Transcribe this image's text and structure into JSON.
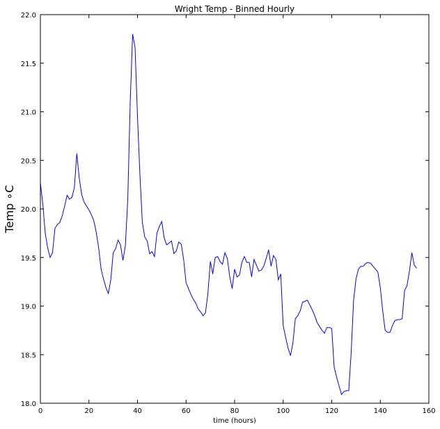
{
  "chart_data": {
    "type": "line",
    "title": "Wright Temp - Binned Hourly",
    "xlabel": "time (hours)",
    "ylabel": "Temp ∘C",
    "xlim": [
      0,
      160
    ],
    "ylim": [
      18.0,
      22.0
    ],
    "xticks": [
      0,
      20,
      40,
      60,
      80,
      100,
      120,
      140,
      160
    ],
    "xtick_labels": [
      "0",
      "20",
      "40",
      "60",
      "80",
      "100",
      "120",
      "140",
      "160"
    ],
    "yticks": [
      18.0,
      18.5,
      19.0,
      19.5,
      20.0,
      20.5,
      21.0,
      21.5,
      22.0
    ],
    "ytick_labels": [
      "18.0",
      "18.5",
      "19.0",
      "19.5",
      "20.0",
      "20.5",
      "21.0",
      "21.5",
      "22.0"
    ],
    "grid": false,
    "line_color": "#0000ff",
    "series": [
      {
        "x": [
          0,
          1,
          2,
          3,
          4,
          5,
          6,
          7,
          8,
          9,
          10,
          11,
          12,
          13,
          14,
          15,
          16,
          17,
          18,
          19,
          20,
          21,
          22,
          23,
          24,
          25,
          26,
          27,
          28,
          29,
          30,
          31,
          32,
          33,
          34,
          35,
          36,
          37,
          38,
          39,
          40,
          41,
          42,
          43,
          44,
          45,
          46,
          47,
          48,
          49,
          50,
          51,
          52,
          53,
          54,
          55,
          56,
          57,
          58,
          59,
          60,
          61,
          62,
          63,
          64,
          65,
          66,
          67,
          68,
          69,
          70,
          71,
          72,
          73,
          74,
          75,
          76,
          77,
          78,
          79,
          80,
          81,
          82,
          83,
          84,
          85,
          86,
          87,
          88,
          89,
          90,
          91,
          92,
          93,
          94,
          95,
          96,
          97,
          98,
          99,
          100,
          101,
          102,
          103,
          104,
          105,
          106,
          107,
          108,
          109,
          110,
          111,
          112,
          113,
          114,
          115,
          116,
          117,
          118,
          119,
          120,
          121,
          122,
          123,
          124,
          125,
          126,
          127,
          128,
          129,
          130,
          131,
          132,
          133,
          134,
          135,
          136,
          137,
          138,
          139,
          140,
          141,
          142,
          143,
          144,
          145,
          146,
          147,
          148,
          149,
          150,
          151,
          152,
          153,
          154,
          155
        ],
        "y": [
          20.27,
          20.05,
          19.75,
          19.6,
          19.5,
          19.55,
          19.8,
          19.84,
          19.86,
          19.93,
          20.03,
          20.14,
          20.1,
          20.12,
          20.22,
          20.57,
          20.32,
          20.15,
          20.07,
          20.03,
          19.99,
          19.94,
          19.88,
          19.76,
          19.6,
          19.38,
          19.28,
          19.19,
          19.13,
          19.27,
          19.55,
          19.59,
          19.68,
          19.63,
          19.47,
          19.62,
          20.1,
          21.1,
          21.8,
          21.66,
          20.95,
          20.35,
          19.86,
          19.71,
          19.67,
          19.54,
          19.56,
          19.51,
          19.75,
          19.82,
          19.87,
          19.7,
          19.63,
          19.65,
          19.67,
          19.54,
          19.57,
          19.66,
          19.64,
          19.48,
          19.24,
          19.18,
          19.12,
          19.07,
          19.03,
          18.97,
          18.94,
          18.9,
          18.93,
          19.13,
          19.46,
          19.33,
          19.5,
          19.51,
          19.46,
          19.43,
          19.55,
          19.49,
          19.3,
          19.18,
          19.38,
          19.3,
          19.32,
          19.45,
          19.51,
          19.45,
          19.45,
          19.3,
          19.48,
          19.42,
          19.36,
          19.37,
          19.41,
          19.49,
          19.58,
          19.41,
          19.52,
          19.48,
          19.27,
          19.33,
          18.8,
          18.68,
          18.57,
          18.49,
          18.62,
          18.87,
          18.9,
          18.95,
          19.04,
          19.05,
          19.06,
          19.01,
          18.96,
          18.9,
          18.83,
          18.79,
          18.75,
          18.72,
          18.78,
          18.78,
          18.77,
          18.37,
          18.27,
          18.18,
          18.09,
          18.12,
          18.13,
          18.13,
          18.52,
          19.06,
          19.28,
          19.38,
          19.41,
          19.41,
          19.44,
          19.45,
          19.44,
          19.41,
          19.38,
          19.35,
          19.19,
          18.95,
          18.75,
          18.73,
          18.73,
          18.8,
          18.85,
          18.86,
          18.86,
          18.87,
          19.16,
          19.21,
          19.36,
          19.55,
          19.42,
          19.39
        ]
      }
    ]
  }
}
